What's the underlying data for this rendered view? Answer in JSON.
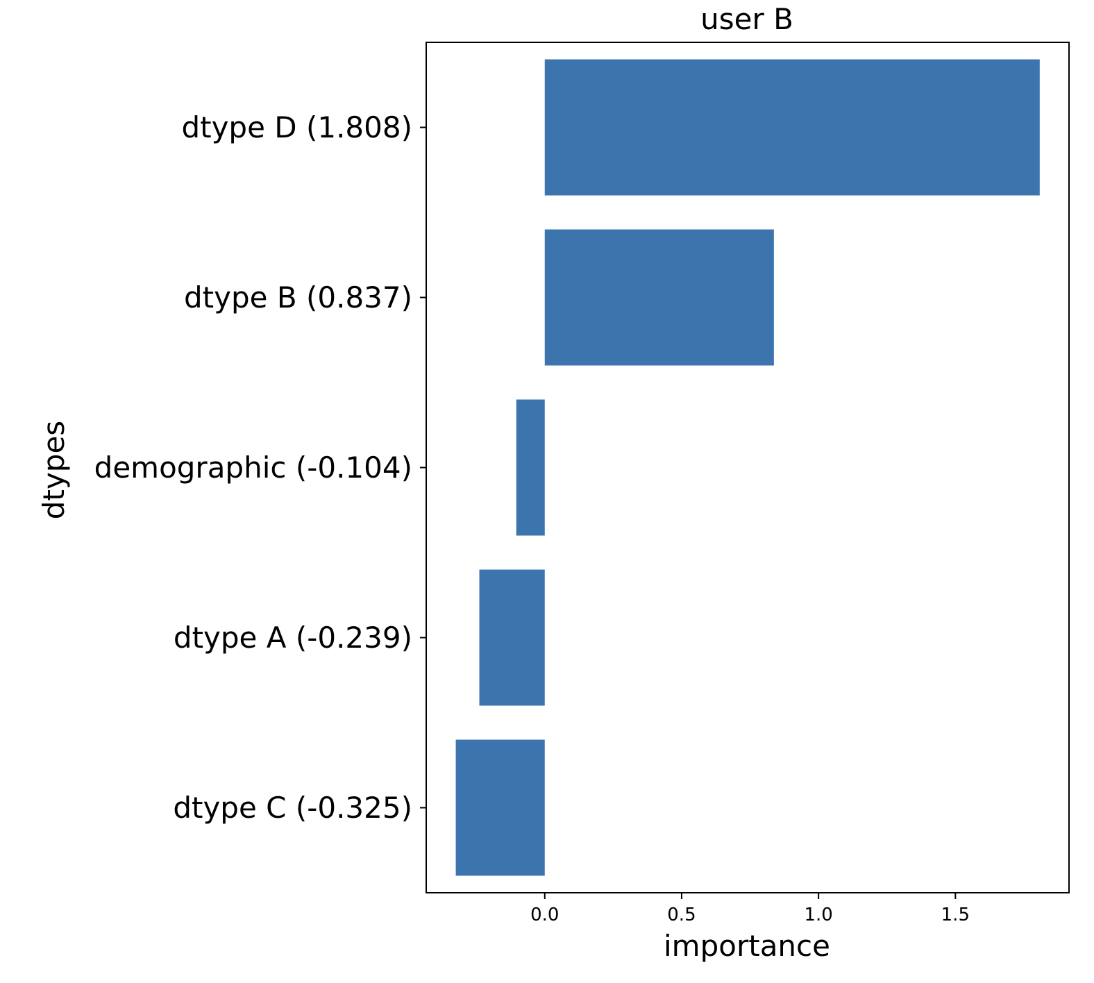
{
  "chart_data": {
    "type": "bar",
    "orientation": "horizontal",
    "title": "user B",
    "xlabel": "importance",
    "ylabel": "dtypes",
    "categories": [
      "dtype D (1.808)",
      "dtype B (0.837)",
      "demographic (-0.104)",
      "dtype A (-0.239)",
      "dtype C (-0.325)"
    ],
    "values": [
      1.808,
      0.837,
      -0.104,
      -0.239,
      -0.325
    ],
    "xlim": [
      -0.433,
      1.915
    ],
    "xticks": [
      {
        "value": 0.0,
        "label": "0.0"
      },
      {
        "value": 0.5,
        "label": "0.5"
      },
      {
        "value": 1.0,
        "label": "1.0"
      },
      {
        "value": 1.5,
        "label": "1.5"
      }
    ],
    "bar_color": "#3c74ae",
    "grid": false,
    "legend": false
  }
}
